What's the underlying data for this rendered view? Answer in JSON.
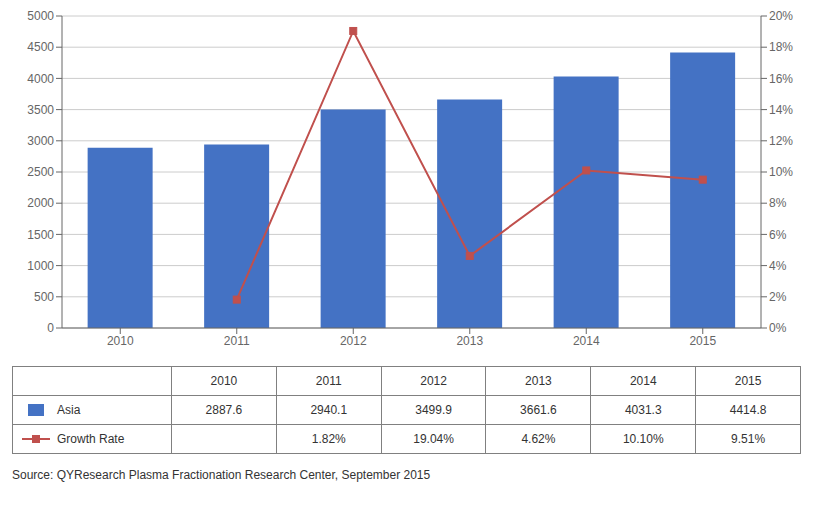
{
  "chart_data": {
    "type": "bar",
    "categories": [
      "2010",
      "2011",
      "2012",
      "2013",
      "2014",
      "2015"
    ],
    "series": [
      {
        "name": "Asia",
        "type": "bar",
        "color": "#4472C4",
        "values": [
          2887.6,
          2940.1,
          3499.9,
          3661.6,
          4031.3,
          4414.8
        ]
      },
      {
        "name": "Growth Rate",
        "type": "line",
        "axis": "y2",
        "color": "#C0504D",
        "marker": "square",
        "values": [
          null,
          0.0182,
          0.1904,
          0.0462,
          0.101,
          0.0951
        ],
        "value_labels": [
          null,
          "1.82%",
          "19.04%",
          "4.62%",
          "10.10%",
          "9.51%"
        ]
      }
    ],
    "ylim": [
      0,
      5000
    ],
    "yticks": [
      0,
      500,
      1000,
      1500,
      2000,
      2500,
      3000,
      3500,
      4000,
      4500,
      5000
    ],
    "y2lim": [
      0,
      0.2
    ],
    "y2ticks": [
      {
        "value": 0,
        "label": "0%"
      },
      {
        "value": 0.02,
        "label": "2%"
      },
      {
        "value": 0.04,
        "label": "4%"
      },
      {
        "value": 0.06,
        "label": "6%"
      },
      {
        "value": 0.08,
        "label": "8%"
      },
      {
        "value": 0.1,
        "label": "10%"
      },
      {
        "value": 0.12,
        "label": "12%"
      },
      {
        "value": 0.14,
        "label": "14%"
      },
      {
        "value": 0.16,
        "label": "16%"
      },
      {
        "value": 0.18,
        "label": "18%"
      },
      {
        "value": 0.2,
        "label": "20%"
      }
    ],
    "grid": true,
    "annotations": [
      "Source: QYResearch Plasma Fractionation Research Center, September 2015"
    ]
  }
}
